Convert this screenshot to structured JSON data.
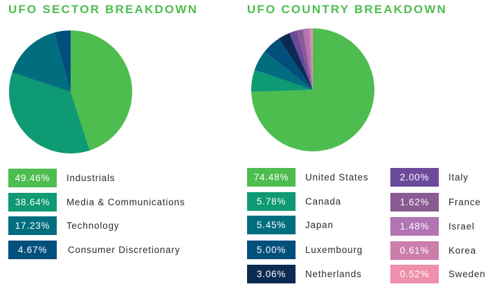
{
  "chart_data": [
    {
      "type": "pie",
      "title": "UFO SECTOR BREAKDOWN",
      "categories": [
        "Industrials",
        "Media & Communications",
        "Technology",
        "Consumer Discretionary"
      ],
      "values": [
        49.46,
        38.64,
        17.23,
        4.67
      ],
      "value_labels": [
        "49.46%",
        "38.64%",
        "17.23%",
        "4.67%"
      ],
      "colors": [
        "#4dbd4f",
        "#0e9a72",
        "#006e7f",
        "#004f7c"
      ]
    },
    {
      "type": "pie",
      "title": "UFO COUNTRY BREAKDOWN",
      "categories": [
        "United States",
        "Canada",
        "Japan",
        "Luxembourg",
        "Netherlands",
        "Italy",
        "France",
        "Israel",
        "Korea",
        "Sweden"
      ],
      "values": [
        74.48,
        5.78,
        5.45,
        5.0,
        3.06,
        2.0,
        1.62,
        1.48,
        0.61,
        0.52
      ],
      "value_labels": [
        "74.48%",
        "5.78%",
        "5.45%",
        "5.00%",
        "3.06%",
        "2.00%",
        "1.62%",
        "1.48%",
        "0.61%",
        "0.52%"
      ],
      "colors": [
        "#4dbd4f",
        "#0e9a72",
        "#006e7f",
        "#004f7c",
        "#0c2b52",
        "#6b4a9b",
        "#8a5a92",
        "#b274b3",
        "#cc7eaa",
        "#ee8fab"
      ]
    }
  ]
}
